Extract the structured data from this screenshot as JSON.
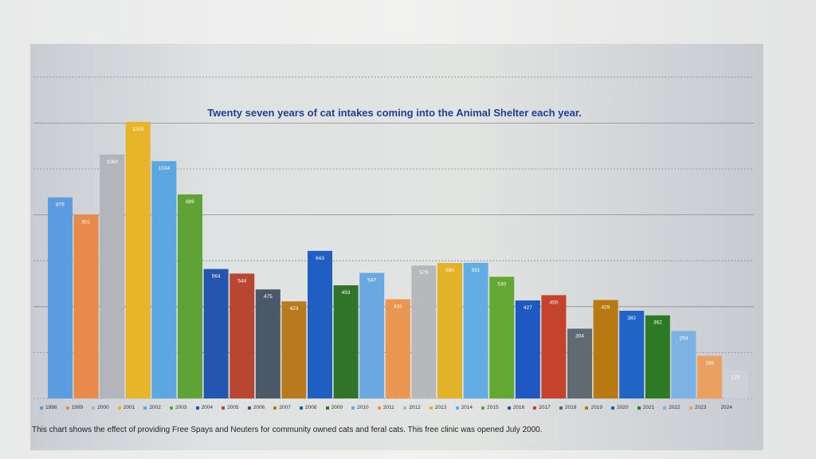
{
  "chart_data": {
    "type": "bar",
    "title": "Twenty seven years of cat intakes coming into the Animal Shelter each year.",
    "xlabel": "",
    "ylabel": "",
    "ylim": [
      0,
      1400
    ],
    "grid": true,
    "legend_position": "bottom",
    "categories": [
      "1998",
      "1999",
      "2000",
      "2001",
      "2002",
      "2003",
      "2004",
      "2005",
      "2006",
      "2007",
      "2008",
      "2009",
      "2010",
      "2011",
      "2012",
      "2013",
      "2014",
      "2015",
      "2016",
      "2017",
      "2018",
      "2019",
      "2020",
      "2021",
      "2022",
      "2023",
      "2024"
    ],
    "values": [
      876,
      801,
      1063,
      1205,
      1034,
      889,
      564,
      544,
      475,
      423,
      643,
      493,
      547,
      432,
      579,
      590,
      591,
      530,
      427,
      450,
      304,
      429,
      382,
      362,
      294,
      186,
      123
    ],
    "colors": [
      "#5b9be0",
      "#e98a4a",
      "#b3b5ba",
      "#e8b42a",
      "#5ca6e2",
      "#5fa236",
      "#2456b0",
      "#b94630",
      "#4a5868",
      "#b97a1e",
      "#1f5fc4",
      "#2f7428",
      "#6aa8e2",
      "#ea9550",
      "#b6b8bc",
      "#e2b228",
      "#64ade4",
      "#63a833",
      "#1f58c2",
      "#c6432b",
      "#5f6a72",
      "#b87812",
      "#2064c8",
      "#2c7a24",
      "#7cb2e4",
      "#e9a060",
      "#cdd0d4"
    ]
  },
  "caption": "This chart shows the effect of providing Free Spays and Neuters for community owned cats and feral cats.  This free clinic was opened July 2000."
}
